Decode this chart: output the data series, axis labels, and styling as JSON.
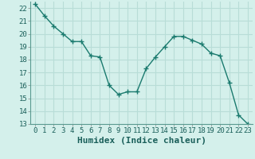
{
  "x": [
    0,
    1,
    2,
    3,
    4,
    5,
    6,
    7,
    8,
    9,
    10,
    11,
    12,
    13,
    14,
    15,
    16,
    17,
    18,
    19,
    20,
    21,
    22,
    23
  ],
  "y": [
    22.3,
    21.4,
    20.6,
    20.0,
    19.4,
    19.4,
    18.3,
    18.2,
    16.0,
    15.3,
    15.5,
    15.5,
    17.3,
    18.2,
    19.0,
    19.8,
    19.8,
    19.5,
    19.2,
    18.5,
    18.3,
    16.2,
    13.7,
    13.0
  ],
  "line_color": "#1a7a6e",
  "marker": "+",
  "marker_size": 4,
  "bg_color": "#d4f0eb",
  "grid_color": "#b8ddd7",
  "xlabel": "Humidex (Indice chaleur)",
  "xlabel_fontsize": 8,
  "tick_fontsize": 6.5,
  "ylim": [
    13,
    22.5
  ],
  "xlim": [
    -0.5,
    23.5
  ],
  "yticks": [
    13,
    14,
    15,
    16,
    17,
    18,
    19,
    20,
    21,
    22
  ],
  "xticks": [
    0,
    1,
    2,
    3,
    4,
    5,
    6,
    7,
    8,
    9,
    10,
    11,
    12,
    13,
    14,
    15,
    16,
    17,
    18,
    19,
    20,
    21,
    22,
    23
  ]
}
